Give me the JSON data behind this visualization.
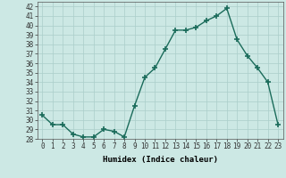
{
  "x": [
    0,
    1,
    2,
    3,
    4,
    5,
    6,
    7,
    8,
    9,
    10,
    11,
    12,
    13,
    14,
    15,
    16,
    17,
    18,
    19,
    20,
    21,
    22,
    23
  ],
  "y": [
    30.5,
    29.5,
    29.5,
    28.5,
    28.2,
    28.2,
    29.0,
    28.8,
    28.2,
    31.5,
    34.5,
    35.5,
    37.5,
    39.5,
    39.5,
    39.8,
    40.5,
    41.0,
    41.8,
    38.5,
    36.8,
    35.5,
    34.0,
    29.5
  ],
  "xlim": [
    -0.5,
    23.5
  ],
  "ylim": [
    28,
    42.5
  ],
  "yticks": [
    28,
    29,
    30,
    31,
    32,
    33,
    34,
    35,
    36,
    37,
    38,
    39,
    40,
    41,
    42
  ],
  "xticks": [
    0,
    1,
    2,
    3,
    4,
    5,
    6,
    7,
    8,
    9,
    10,
    11,
    12,
    13,
    14,
    15,
    16,
    17,
    18,
    19,
    20,
    21,
    22,
    23
  ],
  "xlabel": "Humidex (Indice chaleur)",
  "line_color": "#1a6b5a",
  "bg_color": "#cce8e4",
  "grid_color": "#aaceca",
  "marker": "+",
  "marker_size": 4,
  "line_width": 1.0,
  "tick_fontsize": 5.5,
  "xlabel_fontsize": 6.5
}
